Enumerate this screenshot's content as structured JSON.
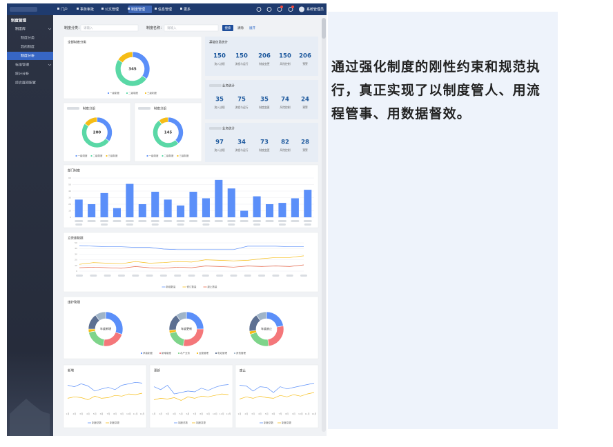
{
  "nav": {
    "items": [
      "门户",
      "事务审批",
      "公文管理",
      "制度管理",
      "信息管理",
      "更多"
    ],
    "user": "系统管理员"
  },
  "sidebar": [
    "制度管理",
    "制度库",
    "制度分类",
    "我的制度",
    "制度分析",
    "标准管理",
    "统计分析",
    "综合展现配置"
  ],
  "filter": {
    "category_label": "制度分类：",
    "category_placeholder": "请输入",
    "name_label": "制度名称：",
    "name_placeholder": "请输入",
    "search": "搜索",
    "clear": "清除",
    "expand": "展开"
  },
  "stat_labels": [
    "流入法规",
    "流程与运行",
    "制度变更",
    "风险控制",
    "预警"
  ],
  "stats": [
    {
      "title": "基础信息统计",
      "values": [
        150,
        150,
        206,
        150,
        206
      ]
    },
    {
      "title": "业务统计",
      "values": [
        35,
        75,
        35,
        74,
        24
      ]
    },
    {
      "title": "业务统计",
      "values": [
        97,
        34,
        73,
        82,
        28
      ]
    }
  ],
  "chart_data": [
    {
      "type": "donut",
      "title": "全部制度分类",
      "total": 345,
      "categories": [
        "一级制度",
        "二级制度",
        "三级制度"
      ],
      "colors": [
        "#5b8ff9",
        "#5ad8a6",
        "#f6bd16"
      ],
      "values": [
        120,
        170,
        55
      ]
    },
    {
      "type": "donut",
      "title": "制度分组",
      "total": 200,
      "categories": [
        "一级制度",
        "二级制度",
        "三级制度"
      ],
      "colors": [
        "#5b8ff9",
        "#5ad8a6",
        "#f6bd16"
      ],
      "values": [
        70,
        100,
        30
      ]
    },
    {
      "type": "donut",
      "title": "制度分组",
      "total": 145,
      "categories": [
        "一级制度",
        "二级制度",
        "三级制度"
      ],
      "colors": [
        "#5b8ff9",
        "#5ad8a6",
        "#f6bd16"
      ],
      "values": [
        55,
        75,
        15
      ]
    },
    {
      "type": "bar",
      "title": "部门制度",
      "color": "#5b8ff9",
      "categories": [
        null,
        null,
        null,
        null,
        null,
        null,
        null,
        null,
        null,
        null,
        null,
        null,
        null,
        null,
        null,
        null,
        null,
        null,
        null
      ],
      "values": [
        27,
        20,
        37,
        14,
        51,
        20,
        39,
        27,
        18,
        39,
        29,
        57,
        44,
        10,
        32,
        20,
        22,
        29,
        42
      ],
      "ylim": [
        0,
        60
      ],
      "yticks": [
        0,
        10,
        20,
        30,
        40,
        50,
        60
      ],
      "grid": true
    },
    {
      "type": "line",
      "title": "立改废数据",
      "categories": [
        null,
        null,
        null,
        null,
        null,
        null,
        null,
        null,
        null,
        null,
        null,
        null,
        null,
        null,
        null,
        null,
        null
      ],
      "series": [
        {
          "name": "新增数量",
          "color": "#5b8ff9",
          "values": [
            45,
            44,
            43,
            43,
            42,
            42,
            39,
            38,
            38,
            38,
            38,
            38,
            44,
            44,
            44,
            43,
            43
          ]
        },
        {
          "name": "修订数量",
          "color": "#f6bd16",
          "values": [
            12,
            15,
            14,
            13,
            17,
            14,
            15,
            17,
            16,
            20,
            19,
            18,
            19,
            22,
            24,
            24,
            27
          ]
        },
        {
          "name": "废止数量",
          "color": "#e8684a",
          "values": [
            6,
            7,
            6,
            5,
            8,
            6,
            5,
            7,
            6,
            9,
            8,
            7,
            9,
            8,
            9,
            8,
            11
          ]
        }
      ],
      "ylim": [
        0,
        50
      ],
      "yticks": [
        0,
        10,
        20,
        30,
        40,
        50
      ],
      "grid": true
    },
    {
      "type": "donut-group",
      "title": "维护管理",
      "categories": [
        "承接制度",
        "新增制度",
        "水产业务",
        "运营管理",
        "电站管理",
        "其他管理"
      ],
      "colors": [
        "#5b8ff9",
        "#f4777a",
        "#7ed48a",
        "#f6bd16",
        "#5d7092",
        "#9fb4c8"
      ],
      "donuts": [
        {
          "label": "年度新增",
          "values": [
            30,
            22,
            20,
            3,
            15,
            10
          ]
        },
        {
          "label": "年度更新",
          "values": [
            25,
            28,
            18,
            3,
            16,
            10
          ]
        },
        {
          "label": "年度废止",
          "values": [
            22,
            26,
            22,
            3,
            17,
            10
          ]
        }
      ]
    },
    {
      "type": "line",
      "title": "新增",
      "categories": [
        "1月",
        "2月",
        "3月",
        "4月",
        "5月",
        "6月",
        "7月",
        "8月",
        "9月",
        "10月",
        "11月",
        "12月"
      ],
      "series": [
        {
          "name": "制度总数",
          "color": "#5b8ff9",
          "values": [
            30,
            28,
            32,
            29,
            22,
            25,
            27,
            24,
            30,
            32,
            34,
            33
          ]
        },
        {
          "name": "制度变更",
          "color": "#f6bd16",
          "values": [
            12,
            14,
            13,
            10,
            15,
            12,
            13,
            16,
            15,
            18,
            17,
            19
          ]
        }
      ],
      "ylim": [
        0,
        40
      ]
    },
    {
      "type": "line",
      "title": "更新",
      "categories": [
        "1月",
        "2月",
        "3月",
        "4月",
        "5月",
        "6月",
        "7月",
        "8月",
        "9月",
        "10月",
        "11月",
        "12月"
      ],
      "series": [
        {
          "name": "制度总数",
          "color": "#5b8ff9",
          "values": [
            28,
            24,
            30,
            18,
            20,
            22,
            21,
            26,
            23,
            27,
            30,
            31
          ]
        },
        {
          "name": "制度变更",
          "color": "#f6bd16",
          "values": [
            10,
            12,
            11,
            13,
            9,
            14,
            12,
            15,
            14,
            16,
            18,
            17
          ]
        }
      ],
      "ylim": [
        0,
        40
      ]
    },
    {
      "type": "line",
      "title": "废止",
      "categories": [
        "1月",
        "2月",
        "3月",
        "4月",
        "5月",
        "6月",
        "7月",
        "8月",
        "9月",
        "10月",
        "11月",
        "12月"
      ],
      "series": [
        {
          "name": "制度总数",
          "color": "#5b8ff9",
          "values": [
            30,
            29,
            22,
            28,
            27,
            20,
            28,
            25,
            27,
            29,
            31,
            33
          ]
        },
        {
          "name": "制度变更",
          "color": "#f6bd16",
          "values": [
            11,
            14,
            12,
            15,
            13,
            12,
            16,
            14,
            17,
            15,
            18,
            20
          ]
        }
      ],
      "ylim": [
        0,
        40
      ]
    }
  ],
  "caption": "通过强化制度的刚性约束和规范执行，真正实现了以制度管人、用流程管事、用数据督效。"
}
